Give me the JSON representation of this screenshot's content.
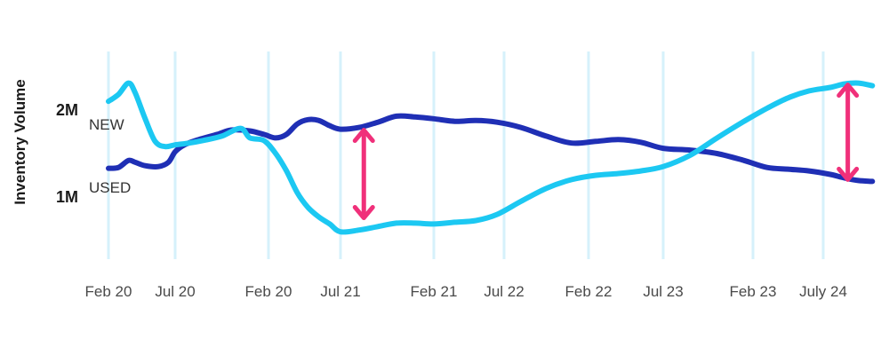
{
  "chart_data": {
    "type": "line",
    "title": "",
    "xlabel": "",
    "ylabel": "Inventory Volume",
    "x_tick_labels": [
      "Feb 20",
      "Jul 20",
      "Feb 20",
      "Jul 21",
      "Feb 21",
      "Jul 22",
      "Feb 22",
      "Jul 23",
      "Feb 23",
      "July 24"
    ],
    "y_tick_labels": [
      "2M",
      "1M"
    ],
    "y_ticks": [
      2000000,
      1000000
    ],
    "grid": "vertical",
    "legend": "inline labels at left",
    "series": [
      {
        "name": "NEW",
        "color": "#1f2fb5",
        "x": [
          0,
          0.15,
          0.3,
          0.4,
          0.55,
          0.75,
          0.9,
          1.0,
          1.1,
          1.25,
          1.45,
          1.6,
          1.8,
          1.95,
          2.1,
          2.25,
          2.4,
          2.55,
          2.7,
          2.85,
          3.0,
          3.2,
          3.4,
          3.6,
          3.8,
          4.0,
          4.3,
          4.6,
          4.9,
          5.2,
          5.5,
          5.8,
          6.1,
          6.4,
          6.7,
          7.0,
          7.3,
          7.6,
          7.9,
          8.2,
          8.5,
          8.8,
          9.1,
          9.3,
          9.5,
          9.7
        ],
        "values": [
          1330000,
          1340000,
          1420000,
          1400000,
          1360000,
          1350000,
          1400000,
          1520000,
          1600000,
          1660000,
          1720000,
          1770000,
          1760000,
          1720000,
          1680000,
          1720000,
          1840000,
          1890000,
          1880000,
          1820000,
          1780000,
          1800000,
          1860000,
          1930000,
          1920000,
          1900000,
          1870000,
          1880000,
          1860000,
          1800000,
          1700000,
          1620000,
          1640000,
          1660000,
          1630000,
          1560000,
          1540000,
          1500000,
          1420000,
          1340000,
          1320000,
          1300000,
          1260000,
          1220000,
          1190000,
          1180000
        ]
      },
      {
        "name": "USED",
        "color": "#1cc8f2",
        "x": [
          0,
          0.15,
          0.3,
          0.4,
          0.55,
          0.7,
          0.85,
          1.0,
          1.15,
          1.3,
          1.5,
          1.7,
          1.8,
          1.95,
          2.1,
          2.25,
          2.4,
          2.55,
          2.7,
          2.85,
          3.0,
          3.2,
          3.4,
          3.6,
          3.8,
          4.0,
          4.3,
          4.6,
          4.9,
          5.2,
          5.5,
          5.8,
          6.1,
          6.4,
          6.7,
          7.0,
          7.3,
          7.6,
          7.9,
          8.2,
          8.5,
          8.8,
          9.1,
          9.3,
          9.5,
          9.7
        ],
        "values": [
          2100000,
          2180000,
          2310000,
          2200000,
          1900000,
          1640000,
          1580000,
          1600000,
          1620000,
          1650000,
          1700000,
          1790000,
          1680000,
          1650000,
          1500000,
          1300000,
          1050000,
          880000,
          770000,
          690000,
          600000,
          620000,
          660000,
          700000,
          700000,
          690000,
          710000,
          730000,
          800000,
          950000,
          1100000,
          1200000,
          1250000,
          1270000,
          1300000,
          1350000,
          1480000,
          1680000,
          1870000,
          2020000,
          2140000,
          2220000,
          2260000,
          2300000,
          2310000,
          2280000
        ]
      }
    ],
    "annotations": [
      {
        "type": "double-arrow",
        "color": "#f0307a",
        "x": 3.25,
        "from": 760000,
        "to": 1770000
      },
      {
        "type": "double-arrow",
        "color": "#f0307a",
        "x": 9.35,
        "from": 1200000,
        "to": 2290000
      }
    ]
  }
}
